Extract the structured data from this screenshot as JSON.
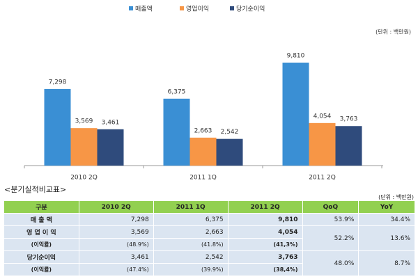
{
  "chart_data": {
    "type": "bar",
    "unit_note": "(단위 : 백만원)",
    "categories": [
      "2010 2Q",
      "2011 1Q",
      "2011 2Q"
    ],
    "series": [
      {
        "name": "매출액",
        "color": "#3a8fd4",
        "values": [
          7298,
          6375,
          9810
        ],
        "value_labels": [
          "7,298",
          "6,375",
          "9,810"
        ]
      },
      {
        "name": "영업이익",
        "color": "#f79646",
        "values": [
          3569,
          2663,
          4054
        ],
        "value_labels": [
          "3,569",
          "2,663",
          "4,054"
        ]
      },
      {
        "name": "당기순이익",
        "color": "#2f4b7c",
        "values": [
          3461,
          2542,
          3763
        ],
        "value_labels": [
          "3,461",
          "2,542",
          "3,763"
        ]
      }
    ]
  },
  "table": {
    "title": "<분기실적비교표>",
    "unit_note": "(단위 : 백만원)",
    "header": [
      "구분",
      "2010 2Q",
      "2011 1Q",
      "2011 2Q",
      "QoQ",
      "YoY"
    ],
    "rows": [
      [
        "매 출 액",
        "7,298",
        "6,375",
        "9,810",
        "53.9%",
        "34.4%"
      ],
      [
        "영 업 이 익",
        "3,569",
        "2,663",
        "4,054",
        "52.2%",
        "13.6%"
      ],
      [
        "(이익률)",
        "(48.9%)",
        "(41.8%)",
        "(41,3%)"
      ],
      [
        "당기순이익",
        "3,461",
        "2,542",
        "3,763",
        "48.0%",
        "8.7%"
      ],
      [
        "(이익률)",
        "(47.4%)",
        "(39.9%)",
        "(38,4%)"
      ]
    ]
  }
}
